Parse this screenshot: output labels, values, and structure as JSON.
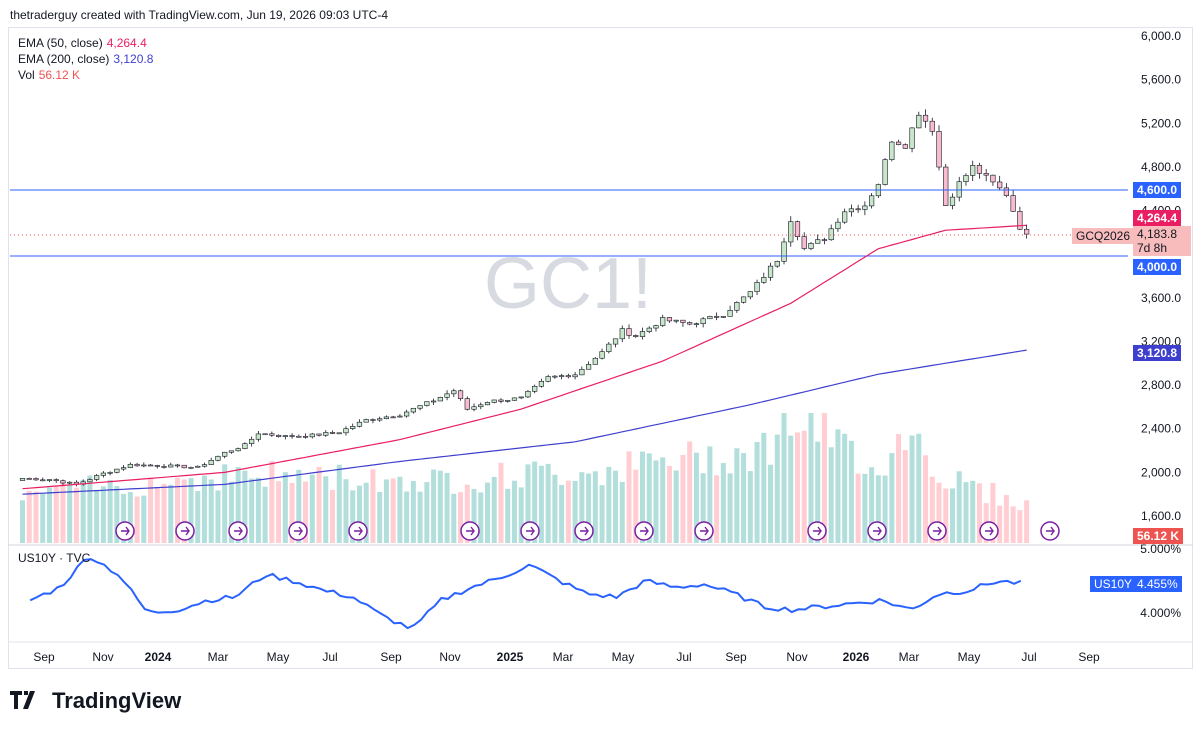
{
  "header": {
    "byline": "thetraderguy created with TradingView.com, Jun 19, 2026 09:03 UTC-4"
  },
  "watermark": "GC1!",
  "legend": {
    "ema50": {
      "label": "EMA (50, close)",
      "value": "4,264.4",
      "color": "#e91e63"
    },
    "ema200": {
      "label": "EMA (200, close)",
      "value": "3,120.8",
      "color": "#3f3fcf"
    },
    "vol": {
      "label": "Vol",
      "value": "56.12 K",
      "color": "#ef5350"
    }
  },
  "price_axis": {
    "ticks": [
      "6,000.0",
      "5,600.0",
      "5,200.0",
      "4,800.0",
      "4,400.0",
      "3,600.0",
      "3,200.0",
      "2,800.0",
      "2,400.0",
      "2,000.0",
      "1,600.0"
    ]
  },
  "price_tags": {
    "level_high": "4,600.0",
    "ema50": "4,264.4",
    "last_price": "4,183.8",
    "countdown": "7d 8h",
    "symbol": "GCQ2026",
    "level_low": "4,000.0",
    "ema200": "3,120.8",
    "volume": "56.12 K"
  },
  "indicator": {
    "label": "US10Y · TVC",
    "tag_symbol": "US10Y",
    "tag_value": "4.455%",
    "axis_ticks": [
      "5.000%",
      "4.000%"
    ]
  },
  "time_axis": [
    "Sep",
    "Nov",
    "2024",
    "Mar",
    "May",
    "Jul",
    "Sep",
    "Nov",
    "2025",
    "Mar",
    "May",
    "Jul",
    "Sep",
    "Nov",
    "2026",
    "Mar",
    "May",
    "Jul",
    "Sep"
  ],
  "footer": {
    "brand": "TradingView"
  },
  "colors": {
    "up": "#26a69a",
    "down": "#ef5350",
    "hline": "#2962ff",
    "ema50": "#e91e63",
    "ema200": "#3f3fcf",
    "yield": "#2962ff"
  },
  "chart_data": [
    {
      "type": "candlestick",
      "title": "GC1!",
      "timeframe": "weekly",
      "x_range": [
        "2023-08",
        "2026-09"
      ],
      "ylim": [
        1500,
        6100
      ],
      "horizontal_levels": [
        4600,
        4000
      ],
      "last_price": 4183.8,
      "close_path": [
        [
          "2023-08-07",
          1945
        ],
        [
          "2023-09-04",
          1935
        ],
        [
          "2023-10-02",
          1890
        ],
        [
          "2023-10-30",
          1990
        ],
        [
          "2023-11-27",
          2070
        ],
        [
          "2024-01-01",
          2060
        ],
        [
          "2024-02-05",
          2045
        ],
        [
          "2024-03-04",
          2180
        ],
        [
          "2024-03-25",
          2250
        ],
        [
          "2024-04-08",
          2360
        ],
        [
          "2024-05-06",
          2330
        ],
        [
          "2024-06-03",
          2340
        ],
        [
          "2024-07-01",
          2370
        ],
        [
          "2024-07-29",
          2480
        ],
        [
          "2024-09-02",
          2530
        ],
        [
          "2024-10-07",
          2660
        ],
        [
          "2024-10-28",
          2750
        ],
        [
          "2024-11-11",
          2580
        ],
        [
          "2024-12-02",
          2650
        ],
        [
          "2025-01-06",
          2680
        ],
        [
          "2025-02-03",
          2870
        ],
        [
          "2025-03-03",
          2900
        ],
        [
          "2025-03-31",
          3100
        ],
        [
          "2025-04-21",
          3300
        ],
        [
          "2025-05-05",
          3250
        ],
        [
          "2025-06-02",
          3400
        ],
        [
          "2025-06-30",
          3360
        ],
        [
          "2025-08-04",
          3450
        ],
        [
          "2025-09-01",
          3650
        ],
        [
          "2025-09-29",
          3950
        ],
        [
          "2025-10-13",
          4320
        ],
        [
          "2025-10-27",
          4050
        ],
        [
          "2025-11-17",
          4150
        ],
        [
          "2025-12-08",
          4400
        ],
        [
          "2025-12-29",
          4450
        ],
        [
          "2026-01-12",
          4650
        ],
        [
          "2026-01-26",
          5050
        ],
        [
          "2026-02-09",
          5000
        ],
        [
          "2026-02-23",
          5300
        ],
        [
          "2026-03-09",
          5150
        ],
        [
          "2026-03-23",
          4450
        ],
        [
          "2026-04-06",
          4650
        ],
        [
          "2026-04-20",
          4800
        ],
        [
          "2026-05-04",
          4700
        ],
        [
          "2026-05-25",
          4550
        ],
        [
          "2026-06-08",
          4250
        ],
        [
          "2026-06-15",
          4184
        ]
      ],
      "ema50_points": [
        [
          "2023-08-07",
          1850
        ],
        [
          "2024-03-04",
          2000
        ],
        [
          "2024-09-02",
          2300
        ],
        [
          "2025-01-06",
          2580
        ],
        [
          "2025-06-02",
          3020
        ],
        [
          "2025-10-13",
          3550
        ],
        [
          "2026-01-12",
          4050
        ],
        [
          "2026-03-23",
          4220
        ],
        [
          "2026-06-15",
          4264.4
        ]
      ],
      "ema200_points": [
        [
          "2023-08-07",
          1800
        ],
        [
          "2024-03-04",
          1890
        ],
        [
          "2024-09-02",
          2100
        ],
        [
          "2025-03-03",
          2280
        ],
        [
          "2025-09-01",
          2620
        ],
        [
          "2026-01-12",
          2900
        ],
        [
          "2026-06-15",
          3120.8
        ]
      ],
      "volume_level_path": [
        [
          "2023-08",
          0.4
        ],
        [
          "2024-03",
          0.55
        ],
        [
          "2024-10",
          0.5
        ],
        [
          "2025-04",
          0.6
        ],
        [
          "2025-09",
          0.75
        ],
        [
          "2025-10",
          1.0
        ],
        [
          "2026-01",
          0.6
        ],
        [
          "2026-02",
          0.95
        ],
        [
          "2026-03",
          0.55
        ],
        [
          "2026-06",
          0.3
        ]
      ]
    },
    {
      "type": "line",
      "title": "US10Y · TVC",
      "ylim": [
        3.6,
        5.0
      ],
      "last_value": 4.455,
      "x": [
        "2023-08",
        "2023-09",
        "2023-10",
        "2023-11",
        "2023-12",
        "2024-01",
        "2024-02",
        "2024-03",
        "2024-04",
        "2024-05",
        "2024-06",
        "2024-07",
        "2024-08",
        "2024-09",
        "2024-10",
        "2024-11",
        "2024-12",
        "2025-01",
        "2025-02",
        "2025-03",
        "2025-04",
        "2025-05",
        "2025-06",
        "2025-07",
        "2025-08",
        "2025-09",
        "2025-10",
        "2025-11",
        "2025-12",
        "2026-01",
        "2026-02",
        "2026-03",
        "2026-04",
        "2026-05",
        "2026-06"
      ],
      "y": [
        4.2,
        4.4,
        4.9,
        4.6,
        4.0,
        4.05,
        4.2,
        4.25,
        4.6,
        4.5,
        4.35,
        4.25,
        3.95,
        3.75,
        4.2,
        4.4,
        4.55,
        4.75,
        4.5,
        4.3,
        4.25,
        4.5,
        4.4,
        4.45,
        4.3,
        4.1,
        4.05,
        4.1,
        4.15,
        4.2,
        4.05,
        4.3,
        4.35,
        4.5,
        4.455
      ]
    }
  ]
}
